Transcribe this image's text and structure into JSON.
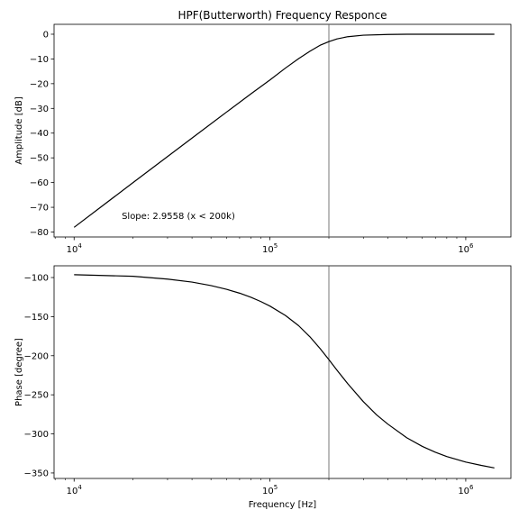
{
  "chart_data": [
    {
      "type": "line",
      "title": "HPF(Butterworth) Frequency Responce",
      "xlabel": "",
      "ylabel": "Amplitude [dB]",
      "xscale": "log",
      "xlim": [
        7900,
        1700000
      ],
      "ylim": [
        -82,
        4
      ],
      "yticks": [
        0,
        -10,
        -20,
        -30,
        -40,
        -50,
        -60,
        -70,
        -80
      ],
      "ytick_labels": [
        "0",
        "−10",
        "−20",
        "−30",
        "−40",
        "−50",
        "−60",
        "−70",
        "−80"
      ],
      "xticks": [
        10000,
        100000,
        1000000
      ],
      "xtick_labels": [
        {
          "base": "10",
          "exp": "4"
        },
        {
          "base": "10",
          "exp": "5"
        },
        {
          "base": "10",
          "exp": "6"
        }
      ],
      "vline": 200000,
      "annotation": {
        "text": "Slope: 2.9558 (x < 200k)",
        "x": 17500,
        "y": -73.5
      },
      "grid": false,
      "line_color": "#000000",
      "vline_color": "#555555",
      "series": [
        {
          "x": [
            10000,
            20000,
            40000,
            60000,
            80000,
            100000,
            120000,
            140000,
            160000,
            180000,
            200000,
            220000,
            250000,
            300000,
            400000,
            500000,
            700000,
            1000000,
            1400000
          ],
          "y": [
            -78.1,
            -60.0,
            -42.0,
            -31.5,
            -24.1,
            -18.5,
            -13.7,
            -9.9,
            -6.9,
            -4.5,
            -3.0,
            -1.9,
            -1.0,
            -0.4,
            -0.1,
            0,
            0,
            0,
            0
          ]
        }
      ]
    },
    {
      "type": "line",
      "title": "",
      "xlabel": "Frequency [Hz]",
      "ylabel": "Phase [degree]",
      "xscale": "log",
      "xlim": [
        7900,
        1700000
      ],
      "ylim": [
        -357,
        -85
      ],
      "yticks": [
        -100,
        -150,
        -200,
        -250,
        -300,
        -350
      ],
      "ytick_labels": [
        "−100",
        "−150",
        "−200",
        "−250",
        "−300",
        "−350"
      ],
      "xticks": [
        10000,
        100000,
        1000000
      ],
      "xtick_labels": [
        {
          "base": "10",
          "exp": "4"
        },
        {
          "base": "10",
          "exp": "5"
        },
        {
          "base": "10",
          "exp": "6"
        }
      ],
      "vline": 200000,
      "grid": false,
      "line_color": "#000000",
      "vline_color": "#555555",
      "series": [
        {
          "x": [
            10000,
            20000,
            30000,
            40000,
            50000,
            60000,
            70000,
            80000,
            90000,
            100000,
            120000,
            140000,
            160000,
            180000,
            200000,
            220000,
            250000,
            300000,
            350000,
            400000,
            500000,
            600000,
            700000,
            800000,
            1000000,
            1200000,
            1400000
          ],
          "y": [
            -96.4,
            -98.4,
            -102.0,
            -105.8,
            -110.3,
            -115.0,
            -120.0,
            -125.3,
            -130.8,
            -136.5,
            -148.5,
            -161.5,
            -175.8,
            -190.6,
            -205.0,
            -218.5,
            -236.0,
            -258.8,
            -275.5,
            -287.5,
            -305.0,
            -316.0,
            -323.5,
            -329.0,
            -336.0,
            -340.3,
            -343.5
          ]
        }
      ]
    }
  ]
}
